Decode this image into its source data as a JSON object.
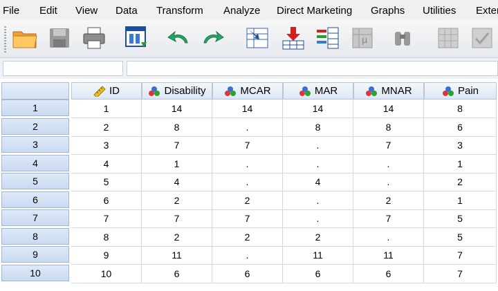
{
  "menu": [
    "File",
    "Edit",
    "View",
    "Data",
    "Transform",
    "Analyze",
    "Direct Marketing",
    "Graphs",
    "Utilities",
    "Exter"
  ],
  "toolbar_icons": [
    "open-folder-icon",
    "save-disk-icon",
    "print-icon",
    "dialog-recall-icon",
    "undo-icon",
    "redo-icon",
    "goto-case-icon",
    "insert-cases-icon",
    "insert-variable-icon",
    "variables-icon",
    "find-icon",
    "split-file-icon",
    "select-cases-icon"
  ],
  "columns": [
    {
      "name": "ID",
      "icon": "ruler-icon"
    },
    {
      "name": "Disability",
      "icon": "nominal-balls-icon"
    },
    {
      "name": "MCAR",
      "icon": "nominal-balls-icon"
    },
    {
      "name": "MAR",
      "icon": "nominal-balls-icon"
    },
    {
      "name": "MNAR",
      "icon": "nominal-balls-icon"
    },
    {
      "name": "Pain",
      "icon": "nominal-balls-icon"
    }
  ],
  "rows": [
    {
      "num": "1",
      "cells": [
        "1",
        "14",
        "14",
        "14",
        "14",
        "8"
      ]
    },
    {
      "num": "2",
      "cells": [
        "2",
        "8",
        ".",
        "8",
        "8",
        "6"
      ]
    },
    {
      "num": "3",
      "cells": [
        "3",
        "7",
        "7",
        ".",
        "7",
        "3"
      ]
    },
    {
      "num": "4",
      "cells": [
        "4",
        "1",
        ".",
        ".",
        ".",
        "1"
      ]
    },
    {
      "num": "5",
      "cells": [
        "5",
        "4",
        ".",
        "4",
        ".",
        "2"
      ]
    },
    {
      "num": "6",
      "cells": [
        "6",
        "2",
        "2",
        ".",
        "2",
        "1"
      ]
    },
    {
      "num": "7",
      "cells": [
        "7",
        "7",
        "7",
        ".",
        "7",
        "5"
      ]
    },
    {
      "num": "8",
      "cells": [
        "8",
        "2",
        "2",
        "2",
        ".",
        "5"
      ]
    },
    {
      "num": "9",
      "cells": [
        "9",
        "11",
        ".",
        "11",
        "11",
        "7"
      ]
    },
    {
      "num": "10",
      "cells": [
        "10",
        "6",
        "6",
        "6",
        "6",
        "7"
      ]
    }
  ]
}
